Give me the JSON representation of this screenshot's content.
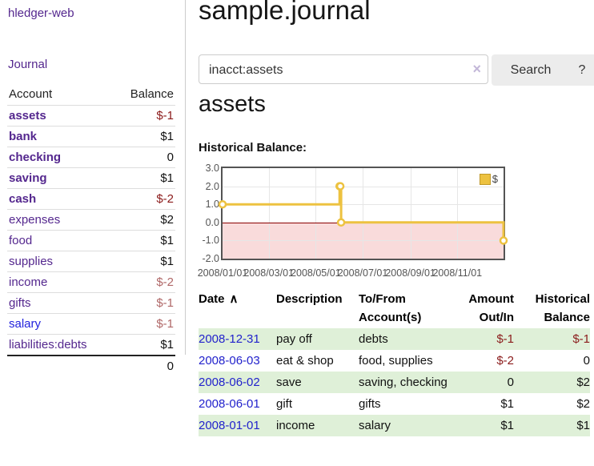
{
  "colors": {
    "link_purple": "#54278e",
    "link_blue": "#2222cc",
    "negative_strong": "#8b1a1a",
    "negative_muted": "#b06868",
    "row_stripe_green": "#dff0d8",
    "chart_series_yellow": "#edc240",
    "chart_negative_region": "#f9dbdb",
    "chart_zero_line": "#8b0000",
    "chart_border": "#545454"
  },
  "sidebar": {
    "app_title": "hledger-web",
    "journal_label": "Journal",
    "accounts_header": {
      "account": "Account",
      "balance": "Balance"
    },
    "accounts": [
      {
        "name": "assets",
        "level": 1,
        "bold": true,
        "balance": "$-1",
        "neg": "strong"
      },
      {
        "name": "bank",
        "level": 2,
        "bold": true,
        "balance": "$1",
        "neg": null
      },
      {
        "name": "checking",
        "level": 3,
        "bold": true,
        "balance": "0",
        "neg": null
      },
      {
        "name": "saving",
        "level": 3,
        "bold": true,
        "balance": "$1",
        "neg": null
      },
      {
        "name": "cash",
        "level": 2,
        "bold": true,
        "balance": "$-2",
        "neg": "strong"
      },
      {
        "name": "expenses",
        "level": 1,
        "bold": false,
        "balance": "$2",
        "neg": null
      },
      {
        "name": "food",
        "level": 2,
        "bold": false,
        "balance": "$1",
        "neg": null
      },
      {
        "name": "supplies",
        "level": 2,
        "bold": false,
        "balance": "$1",
        "neg": null
      },
      {
        "name": "income",
        "level": 1,
        "bold": false,
        "balance": "$-2",
        "neg": "muted"
      },
      {
        "name": "gifts",
        "level": 2,
        "bold": false,
        "balance": "$-1",
        "neg": "muted"
      },
      {
        "name": "salary",
        "level": 2,
        "bold": false,
        "balance": "$-1",
        "neg": "muted",
        "link_color": "blue"
      },
      {
        "name": "liabilities:debts",
        "level": 1,
        "bold": false,
        "balance": "$1",
        "neg": null
      }
    ],
    "total": "0"
  },
  "main": {
    "title": "sample.journal",
    "search": {
      "value": "inacct:assets",
      "clear_icon": "×",
      "button_label": "Search",
      "help_label": "?"
    },
    "account_heading": "assets",
    "chart_title": "Historical Balance:"
  },
  "register": {
    "sort_icon": "∧",
    "columns": [
      {
        "line1": "Date",
        "line2": "",
        "align": "left",
        "sort": true
      },
      {
        "line1": "Description",
        "line2": "",
        "align": "left",
        "sort": false
      },
      {
        "line1": "To/From",
        "line2": "Account(s)",
        "align": "left",
        "sort": false
      },
      {
        "line1": "Amount",
        "line2": "Out/In",
        "align": "right",
        "sort": false
      },
      {
        "line1": "Historical",
        "line2": "Balance",
        "align": "right",
        "sort": false
      }
    ],
    "rows": [
      {
        "date": "2008-12-31",
        "description": "pay off",
        "accounts": "debts",
        "amount": "$-1",
        "amount_neg": true,
        "balance": "$-1",
        "balance_neg": true,
        "stripe": true
      },
      {
        "date": "2008-06-03",
        "description": "eat & shop",
        "accounts": "food, supplies",
        "amount": "$-2",
        "amount_neg": true,
        "balance": "0",
        "balance_neg": false,
        "stripe": false
      },
      {
        "date": "2008-06-02",
        "description": "save",
        "accounts": "saving, checking",
        "amount": "0",
        "amount_neg": false,
        "balance": "$2",
        "balance_neg": false,
        "stripe": true
      },
      {
        "date": "2008-06-01",
        "description": "gift",
        "accounts": "gifts",
        "amount": "$1",
        "amount_neg": false,
        "balance": "$2",
        "balance_neg": false,
        "stripe": false
      },
      {
        "date": "2008-01-01",
        "description": "income",
        "accounts": "salary",
        "amount": "$1",
        "amount_neg": false,
        "balance": "$1",
        "balance_neg": false,
        "stripe": true
      }
    ]
  },
  "chart_data": {
    "type": "line",
    "title": "Historical Balance:",
    "x_range": [
      "2008-01-01",
      "2008-12-31"
    ],
    "ylim": [
      -2,
      3
    ],
    "grid": true,
    "legend_position": "top-right",
    "legend": [
      {
        "label": "$",
        "color": "#edc240"
      }
    ],
    "y_ticks": [
      {
        "value": 3,
        "label": "3.0"
      },
      {
        "value": 2,
        "label": "2.0"
      },
      {
        "value": 1,
        "label": "1.0"
      },
      {
        "value": 0,
        "label": "0.0"
      },
      {
        "value": -1,
        "label": "-1.0"
      },
      {
        "value": -2,
        "label": "-2.0"
      }
    ],
    "x_ticks": [
      {
        "date": "2008-01-01",
        "label": "2008/01/01"
      },
      {
        "date": "2008-03-01",
        "label": "2008/03/01"
      },
      {
        "date": "2008-05-01",
        "label": "2008/05/01"
      },
      {
        "date": "2008-07-01",
        "label": "2008/07/01"
      },
      {
        "date": "2008-09-01",
        "label": "2008/09/01"
      },
      {
        "date": "2008-11-01",
        "label": "2008/11/01"
      }
    ],
    "series": [
      {
        "name": "$",
        "color": "#edc240",
        "step": true,
        "points": [
          [
            "2008-01-01",
            1
          ],
          [
            "2008-06-01",
            2
          ],
          [
            "2008-06-02",
            2
          ],
          [
            "2008-06-03",
            0
          ],
          [
            "2008-12-31",
            -1
          ]
        ]
      }
    ]
  }
}
